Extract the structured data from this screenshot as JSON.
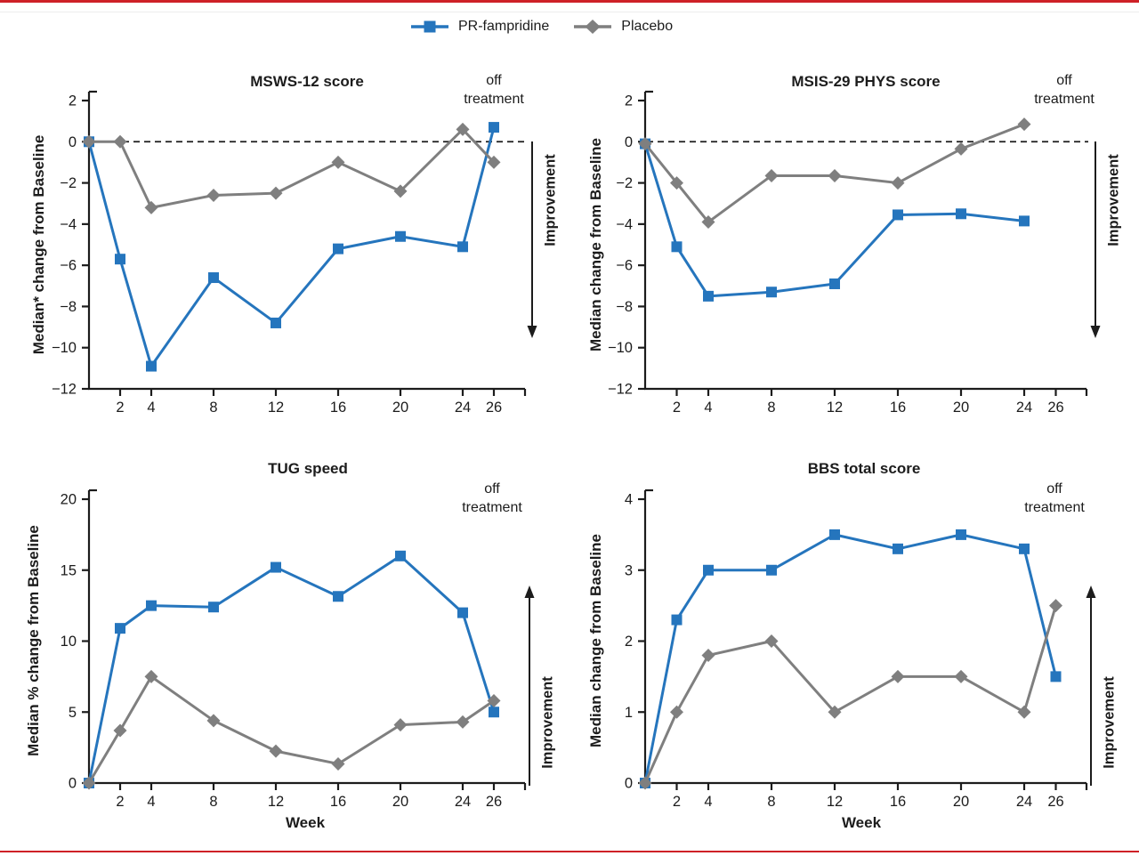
{
  "page": {
    "background": "#ffffff",
    "top_rule_color": "#ce2127",
    "bottom_rule_color": "#ce2127",
    "axis_color": "#1c1c1c"
  },
  "legend": {
    "items": [
      {
        "label": "PR-fampridine",
        "color": "#2575bd",
        "marker": "square"
      },
      {
        "label": "Placebo",
        "color": "#7f7f7f",
        "marker": "diamond"
      }
    ]
  },
  "chart_data": [
    {
      "type": "line",
      "title": "MSWS-12 score",
      "ylabel": "Median* change from Baseline",
      "xlabel": "",
      "off_treatment_label": "off\ntreatment",
      "improvement_label": "Improvement",
      "improvement_direction": "down",
      "zero_dashed_line": true,
      "x": [
        0,
        2,
        4,
        8,
        12,
        16,
        20,
        24,
        26
      ],
      "xticks": [
        2,
        4,
        8,
        12,
        16,
        20,
        24,
        26
      ],
      "ylim": [
        -12,
        2
      ],
      "yticks": [
        2,
        0,
        -2,
        -4,
        -6,
        -8,
        -10,
        -12
      ],
      "series": [
        {
          "name": "PR-fampridine",
          "marker": "square",
          "color": "#2575bd",
          "values": [
            0,
            -5.7,
            -10.9,
            -6.6,
            -8.8,
            -5.2,
            -4.6,
            -5.1,
            0.7
          ]
        },
        {
          "name": "Placebo",
          "marker": "diamond",
          "color": "#7f7f7f",
          "values": [
            0,
            0,
            -3.2,
            -2.6,
            -2.5,
            -1.0,
            -2.4,
            0.6,
            -1.0
          ]
        }
      ]
    },
    {
      "type": "line",
      "title": "MSIS-29 PHYS score",
      "ylabel": "Median change from Baseline",
      "xlabel": "",
      "off_treatment_label": "off\ntreatment",
      "improvement_label": "Improvement",
      "improvement_direction": "down",
      "zero_dashed_line": true,
      "x": [
        0,
        2,
        4,
        8,
        12,
        16,
        20,
        24
      ],
      "xticks": [
        2,
        4,
        8,
        12,
        16,
        20,
        24,
        26
      ],
      "ylim": [
        -12,
        2
      ],
      "yticks": [
        2,
        0,
        -2,
        -4,
        -6,
        -8,
        -10,
        -12
      ],
      "series": [
        {
          "name": "PR-fampridine",
          "marker": "square",
          "color": "#2575bd",
          "values": [
            -0.1,
            -5.1,
            -7.5,
            -7.3,
            -6.9,
            -3.55,
            -3.5,
            -3.85
          ]
        },
        {
          "name": "Placebo",
          "marker": "diamond",
          "color": "#7f7f7f",
          "values": [
            -0.1,
            -2.0,
            -3.9,
            -1.65,
            -1.65,
            -2.0,
            -0.35,
            0.85
          ]
        }
      ]
    },
    {
      "type": "line",
      "title": "TUG speed",
      "ylabel": "Median % change from Baseline",
      "xlabel": "Week",
      "off_treatment_label": "off\ntreatment",
      "improvement_label": "Improvement",
      "improvement_direction": "up",
      "zero_dashed_line": false,
      "x": [
        0,
        2,
        4,
        8,
        12,
        16,
        20,
        24,
        26
      ],
      "xticks": [
        2,
        4,
        8,
        12,
        16,
        20,
        24,
        26
      ],
      "ylim": [
        0,
        20
      ],
      "yticks": [
        20,
        15,
        10,
        5,
        0
      ],
      "series": [
        {
          "name": "PR-fampridine",
          "marker": "square",
          "color": "#2575bd",
          "values": [
            0,
            10.9,
            12.5,
            12.4,
            15.2,
            13.15,
            16.0,
            12.0,
            5.0
          ]
        },
        {
          "name": "Placebo",
          "marker": "diamond",
          "color": "#7f7f7f",
          "values": [
            0,
            3.7,
            7.5,
            4.4,
            2.25,
            1.35,
            4.1,
            4.3,
            5.8
          ]
        }
      ]
    },
    {
      "type": "line",
      "title": "BBS total score",
      "ylabel": "Median change from Baseline",
      "xlabel": "Week",
      "off_treatment_label": "off\ntreatment",
      "improvement_label": "Improvement",
      "improvement_direction": "up",
      "zero_dashed_line": false,
      "x": [
        0,
        2,
        4,
        8,
        12,
        16,
        20,
        24,
        26
      ],
      "xticks": [
        2,
        4,
        8,
        12,
        16,
        20,
        24,
        26
      ],
      "ylim": [
        0,
        4
      ],
      "yticks": [
        4,
        3,
        2,
        1,
        0
      ],
      "series": [
        {
          "name": "PR-fampridine",
          "marker": "square",
          "color": "#2575bd",
          "values": [
            0,
            2.3,
            3.0,
            3.0,
            3.5,
            3.3,
            3.5,
            3.3,
            1.5
          ]
        },
        {
          "name": "Placebo",
          "marker": "diamond",
          "color": "#7f7f7f",
          "values": [
            0,
            1.0,
            1.8,
            2.0,
            1.0,
            1.5,
            1.5,
            1.0,
            2.5
          ]
        }
      ]
    }
  ]
}
